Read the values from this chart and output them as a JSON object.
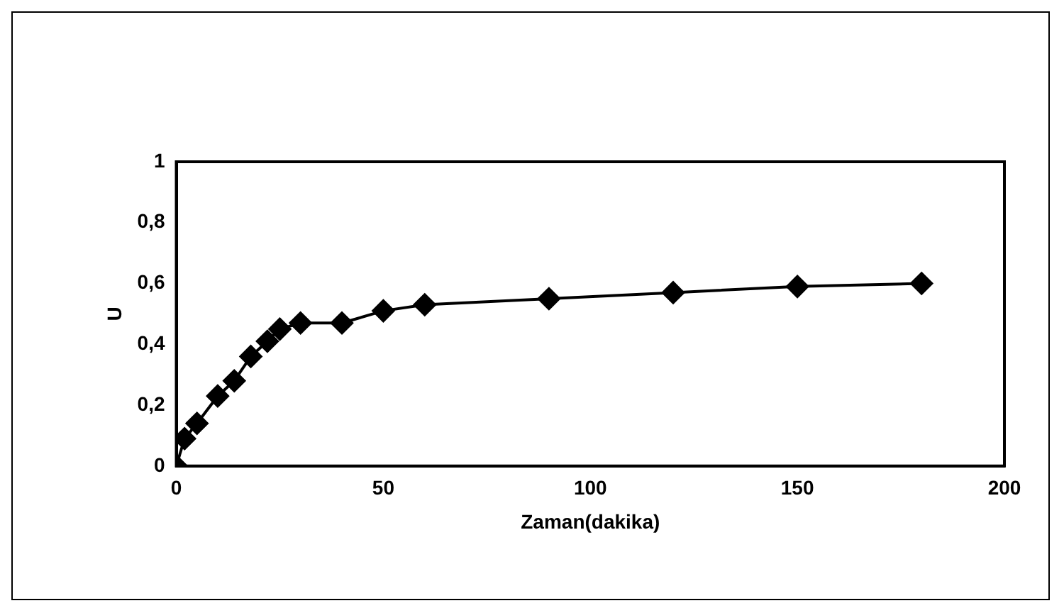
{
  "chart_data": {
    "type": "line",
    "xlabel": "Zaman(dakika)",
    "ylabel": "U",
    "x": [
      0,
      2,
      5,
      10,
      14,
      18,
      22,
      25,
      30,
      40,
      50,
      60,
      90,
      120,
      150,
      180
    ],
    "series": [
      {
        "color": "#000000",
        "values": [
          0,
          0.09,
          0.14,
          0.23,
          0.28,
          0.36,
          0.41,
          0.45,
          0.47,
          0.47,
          0.51,
          0.53,
          0.55,
          0.57,
          0.59,
          0.6
        ]
      }
    ],
    "xlim": [
      0,
      200
    ],
    "xticks": [
      0,
      50,
      100,
      150,
      200
    ],
    "ylim": [
      0,
      1
    ],
    "yticks": [
      {
        "value": 0,
        "label": "0"
      },
      {
        "value": 0.2,
        "label": "0,2"
      },
      {
        "value": 0.4,
        "label": "0,4"
      },
      {
        "value": 0.6,
        "label": "0,6"
      },
      {
        "value": 0.8,
        "label": "0,8"
      },
      {
        "value": 1,
        "label": "1"
      }
    ],
    "grid": false,
    "legend": false,
    "marker": "diamond",
    "line_style": "solid"
  }
}
